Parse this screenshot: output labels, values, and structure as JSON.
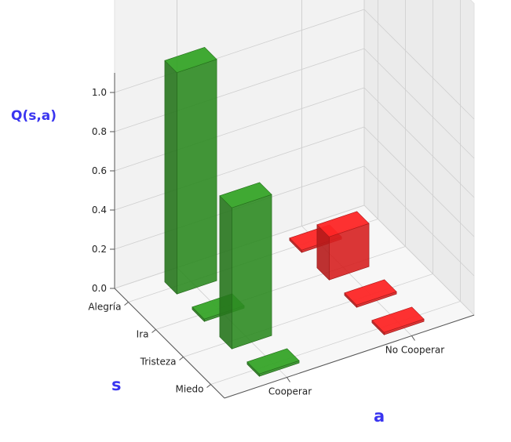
{
  "chart_data": {
    "type": "bar3d",
    "title": "",
    "zlabel": "Q(s,a)",
    "ylabel": "s",
    "xlabel": "a",
    "zlim": [
      0,
      1.1
    ],
    "z_ticks": [
      "0.0",
      "0.2",
      "0.4",
      "0.6",
      "0.8",
      "1.0"
    ],
    "s_categories": [
      "Alegría",
      "Ira",
      "Tristeza",
      "Miedo"
    ],
    "a_categories": [
      "Cooperar",
      "No Cooperar"
    ],
    "grid": true,
    "colors": {
      "Cooperar": "#2e8b22",
      "No Cooperar": "#d62020"
    },
    "series": [
      {
        "action": "Cooperar",
        "values": [
          1.13,
          0.01,
          0.72,
          0.01
        ]
      },
      {
        "action": "No Cooperar",
        "values": [
          0.01,
          0.22,
          0.01,
          0.01
        ]
      }
    ]
  }
}
